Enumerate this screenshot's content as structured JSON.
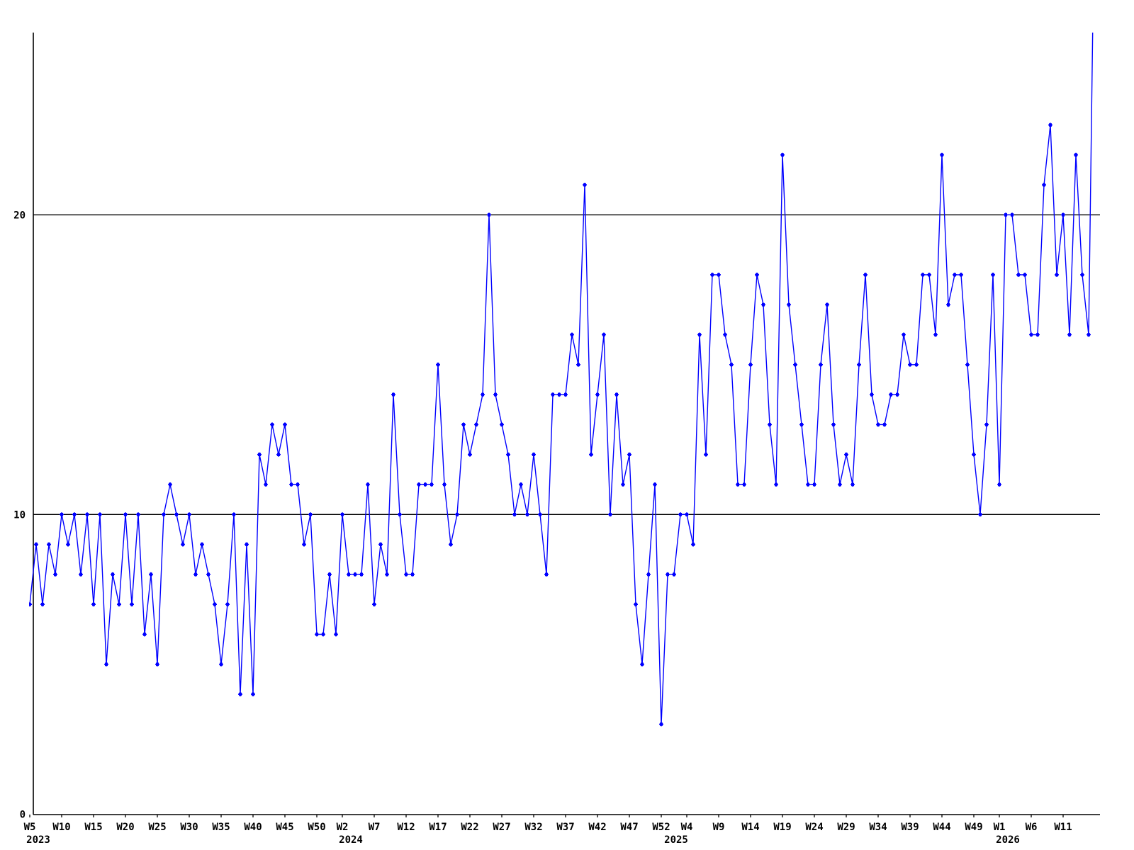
{
  "chart_data": {
    "type": "line",
    "title": "",
    "legend": [],
    "grid": "reference lines at y=10 and y=20 only",
    "legend_position": "none",
    "background_color": "#ffffff",
    "line_color": "#0000ff",
    "axis_color": "#000000",
    "marker": "plus-cross",
    "ylim": [
      0,
      26
    ],
    "yticks": [
      0,
      10,
      20
    ],
    "reference_hlines": [
      10,
      20
    ],
    "x_unit": "ISO week, one data point per week",
    "x_range": "W5 2023 through W16 2026 (last point rises off the top of the plot)",
    "series": [
      {
        "name": "weekly-values",
        "years": [
          {
            "year": "2023",
            "first_week": 5,
            "values": [
              7,
              9,
              7,
              9,
              8,
              10,
              9,
              10,
              8,
              10,
              7,
              10,
              5,
              8,
              7,
              10,
              7,
              10,
              6,
              8,
              5,
              10,
              11,
              10,
              9,
              10,
              8,
              9,
              8,
              7,
              5,
              7,
              10,
              4,
              9,
              4,
              12,
              11,
              13,
              12,
              13,
              11,
              11,
              9,
              10,
              6,
              6,
              8
            ]
          },
          {
            "year": "2024",
            "first_week": 1,
            "values": [
              6,
              10,
              8,
              8,
              8,
              11,
              7,
              9,
              8,
              14,
              10,
              8,
              8,
              11,
              11,
              11,
              15,
              11,
              9,
              10,
              13,
              12,
              13,
              14,
              20,
              14,
              13,
              12,
              10,
              11,
              10,
              12,
              10,
              8,
              14,
              14,
              14,
              16,
              15,
              21,
              12,
              14,
              16,
              10,
              14,
              11,
              12,
              7,
              5,
              8,
              11,
              3
            ]
          },
          {
            "year": "2025",
            "first_week": 1,
            "values": [
              8,
              8,
              10,
              10,
              9,
              16,
              12,
              18,
              18,
              16,
              15,
              11,
              11,
              15,
              18,
              17,
              13,
              11,
              22,
              17,
              15,
              13,
              11,
              11,
              15,
              17,
              13,
              11,
              12,
              11,
              15,
              18,
              14,
              13,
              13,
              14,
              14,
              16,
              15,
              15,
              18,
              18,
              16,
              22,
              17,
              18,
              18,
              15,
              12,
              10,
              13,
              18
            ]
          },
          {
            "year": "2026",
            "first_week": 1,
            "values": [
              11,
              20,
              20,
              18,
              18,
              16,
              16,
              21,
              23,
              18,
              20,
              16,
              22,
              18,
              16,
              32
            ],
            "note": "final value exceeds the plot top and is clipped by the chart border"
          }
        ]
      }
    ],
    "x_tick_labels": [
      {
        "label": "W5",
        "index": 0,
        "year_below": "2023"
      },
      {
        "label": "W10",
        "index": 5
      },
      {
        "label": "W15",
        "index": 10
      },
      {
        "label": "W20",
        "index": 15
      },
      {
        "label": "W25",
        "index": 20
      },
      {
        "label": "W30",
        "index": 25
      },
      {
        "label": "W35",
        "index": 30
      },
      {
        "label": "W40",
        "index": 35
      },
      {
        "label": "W45",
        "index": 40
      },
      {
        "label": "W50",
        "index": 45
      },
      {
        "label": "W2",
        "index": 49,
        "year_below": "2024"
      },
      {
        "label": "W7",
        "index": 54
      },
      {
        "label": "W12",
        "index": 59
      },
      {
        "label": "W17",
        "index": 64
      },
      {
        "label": "W22",
        "index": 69
      },
      {
        "label": "W27",
        "index": 74
      },
      {
        "label": "W32",
        "index": 79
      },
      {
        "label": "W37",
        "index": 84
      },
      {
        "label": "W42",
        "index": 89
      },
      {
        "label": "W47",
        "index": 94
      },
      {
        "label": "W52",
        "index": 99
      },
      {
        "label": "W4",
        "index": 103,
        "year_below_at_index": 100,
        "year_below": "2025"
      },
      {
        "label": "W9",
        "index": 108
      },
      {
        "label": "W14",
        "index": 113
      },
      {
        "label": "W19",
        "index": 118
      },
      {
        "label": "W24",
        "index": 123
      },
      {
        "label": "W29",
        "index": 128
      },
      {
        "label": "W34",
        "index": 133
      },
      {
        "label": "W39",
        "index": 138
      },
      {
        "label": "W44",
        "index": 143
      },
      {
        "label": "W49",
        "index": 148
      },
      {
        "label": "W1",
        "index": 152,
        "year_below": "2026"
      },
      {
        "label": "W6",
        "index": 157
      },
      {
        "label": "W11",
        "index": 162
      }
    ],
    "y_tick_labels": [
      "20",
      "10",
      "0"
    ]
  }
}
